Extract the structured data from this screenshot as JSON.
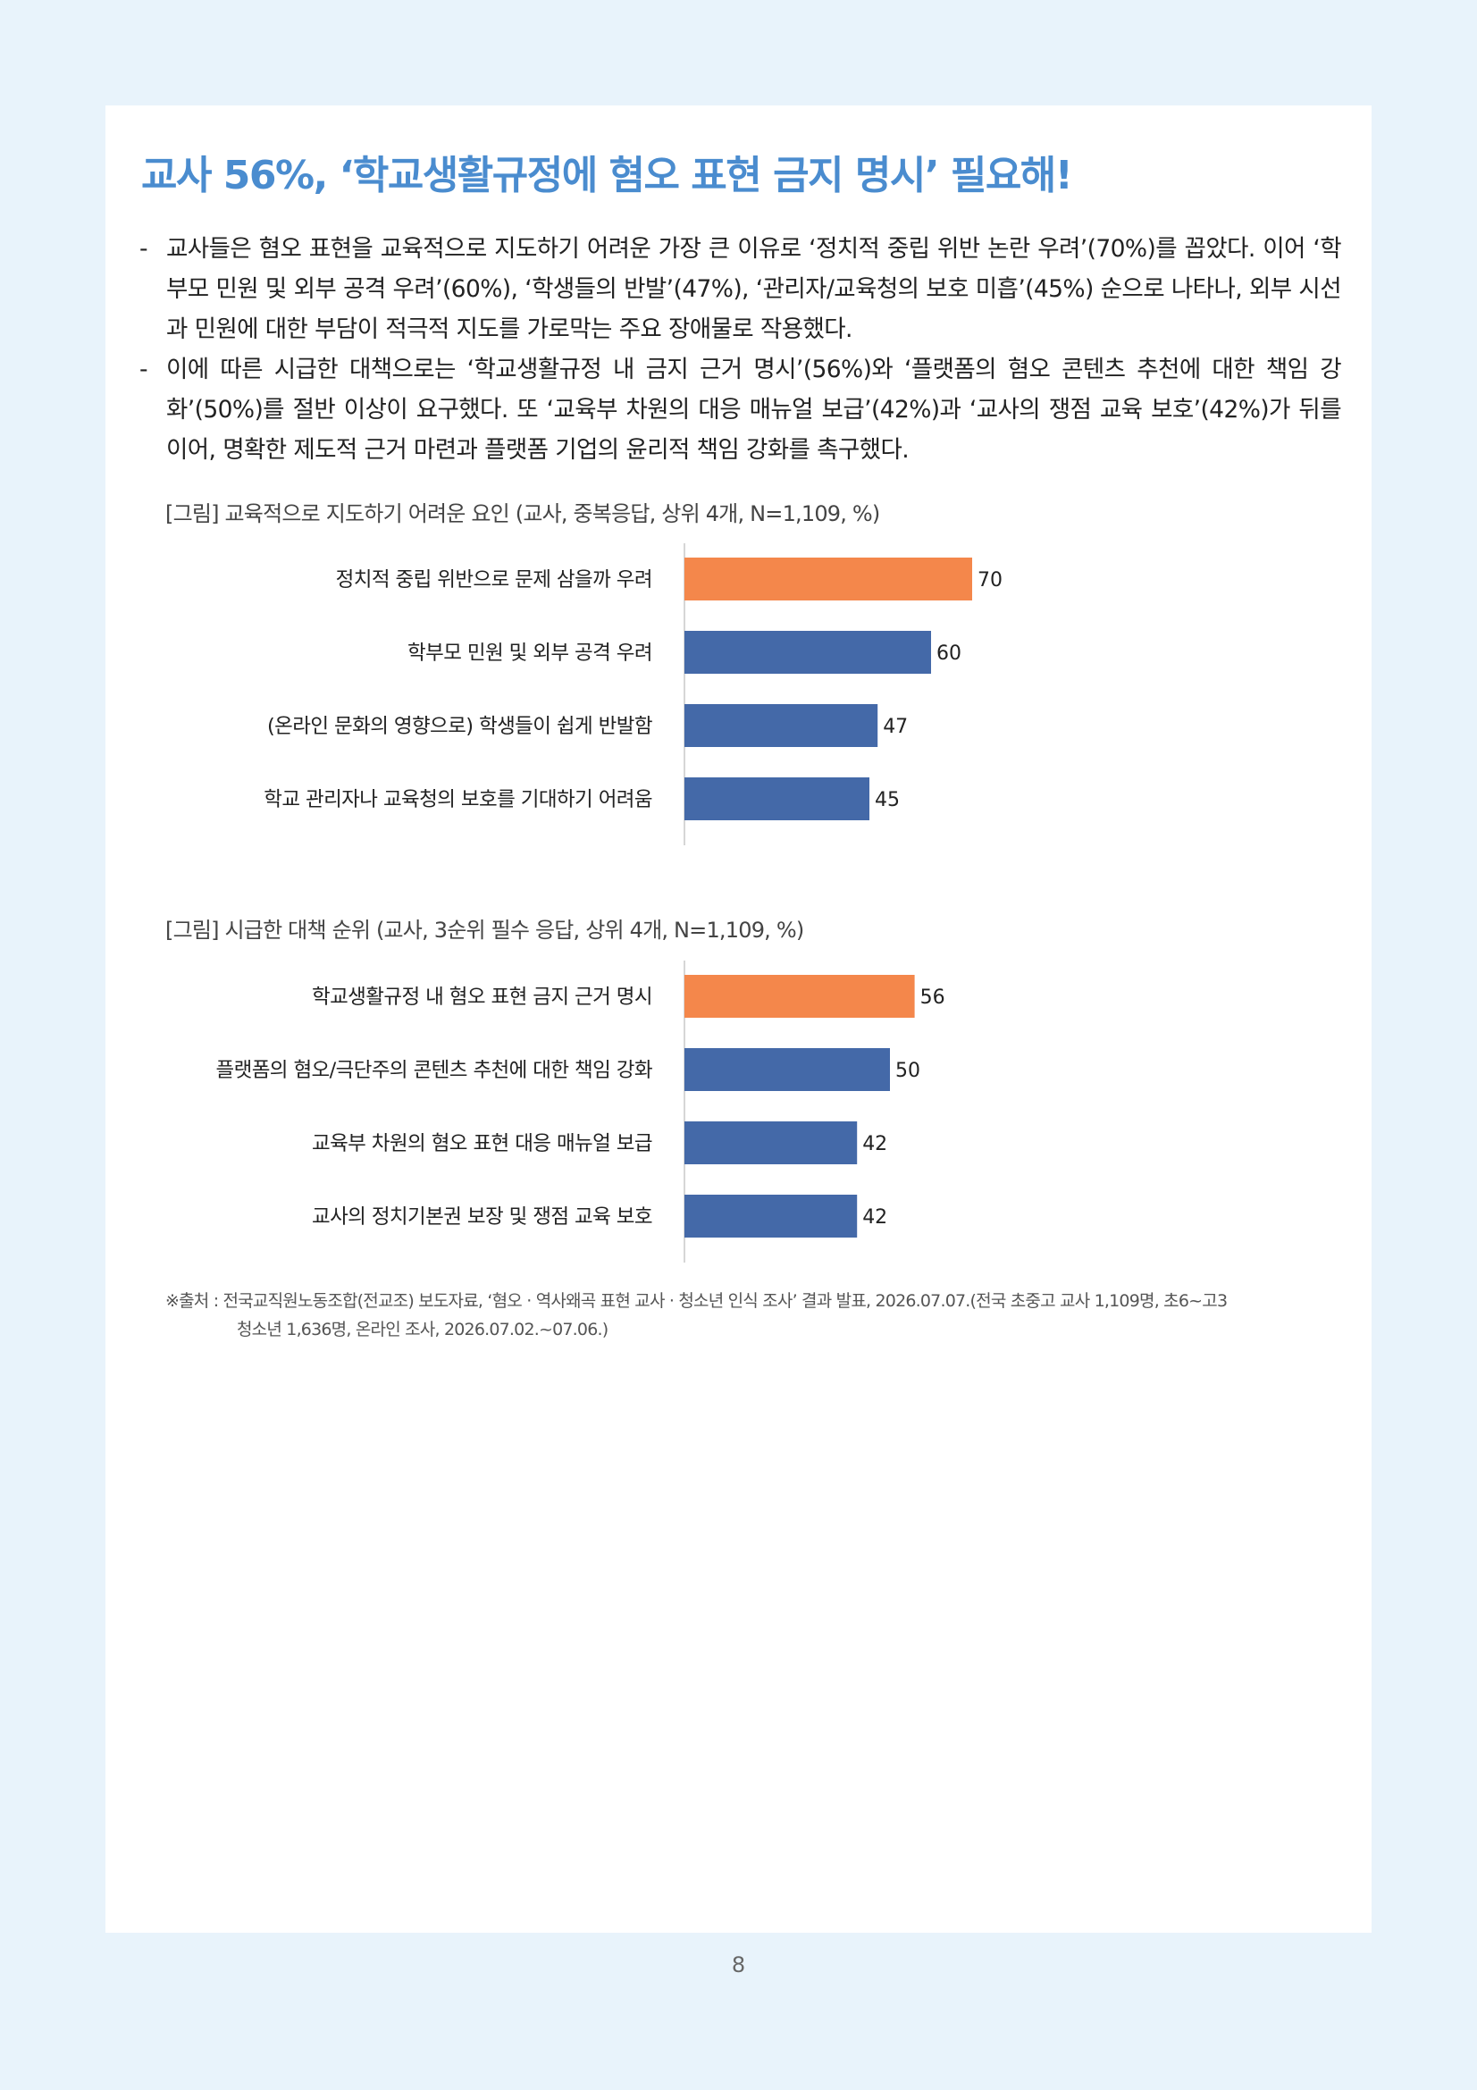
{
  "title": "교사 56%, ‘학교생활규정에 혐오 표현 금지 명시’ 필요해!",
  "bullets": [
    {
      "dash": "-",
      "text": "교사들은 혐오 표현을 교육적으로 지도하기 어려운 가장 큰 이유로 ‘정치적 중립 위반 논란 우려’(70%)를 꼽았다. 이어 ‘학부모 민원 및 외부 공격 우려’(60%), ‘학생들의 반발’(47%), ‘관리자/교육청의 보호 미흡’(45%) 순으로 나타나, 외부 시선과 민원에 대한 부담이 적극적 지도를 가로막는 주요 장애물로 작용했다."
    },
    {
      "dash": "-",
      "text": "이에 따른 시급한 대책으로는 ‘학교생활규정 내 금지 근거 명시’(56%)와 ‘플랫폼의 혐오 콘텐츠 추천에 대한 책임 강화’(50%)를 절반 이상이 요구했다. 또 ‘교육부 차원의 대응 매뉴얼 보급’(42%)과 ‘교사의 쟁점 교육 보호’(42%)가 뒤를 이어, 명확한 제도적 근거 마련과 플랫폼 기업의 윤리적 책임 강화를 촉구했다."
    }
  ],
  "colors": {
    "title": "#4a8ccf",
    "highlight_bar": "#f4874b",
    "bar": "#4469a8",
    "background": "#e8f3fb"
  },
  "chart_data": [
    {
      "type": "bar",
      "orientation": "horizontal",
      "caption": "[그림] 교육적으로 지도하기 어려운 요인 (교사, 중복응답, 상위 4개, N=1,109, %)",
      "categories": [
        "정치적 중립 위반으로 문제 삼을까 우려",
        "학부모 민원 및 외부 공격 우려",
        "(온라인 문화의 영향으로) 학생들이 쉽게 반발함",
        "학교 관리자나 교육청의 보호를 기대하기 어려움"
      ],
      "values": [
        70,
        60,
        47,
        45
      ],
      "highlight_index": 0,
      "data_labels": true,
      "grid": false
    },
    {
      "type": "bar",
      "orientation": "horizontal",
      "caption": "[그림] 시급한 대책 순위 (교사, 3순위 필수 응답, 상위 4개, N=1,109, %)",
      "categories": [
        "학교생활규정 내 혐오 표현 금지 근거 명시",
        "플랫폼의 혐오/극단주의 콘텐츠 추천에 대한 책임 강화",
        "교육부 차원의 혐오 표현 대응 매뉴얼 보급",
        "교사의 정치기본권 보장 및 쟁점 교육 보호"
      ],
      "values": [
        56,
        50,
        42,
        42
      ],
      "highlight_index": 0,
      "data_labels": true,
      "grid": false
    }
  ],
  "source": {
    "line1": "※출처 : 전국교직원노동조합(전교조) 보도자료, ‘혐오 · 역사왜곡 표현 교사 · 청소년 인식 조사’ 결과 발표, 2026.07.07.(전국 초중고 교사 1,109명, 초6~고3",
    "line2": "청소년 1,636명, 온라인 조사, 2026.07.02.~07.06.)"
  },
  "page_number": "8"
}
